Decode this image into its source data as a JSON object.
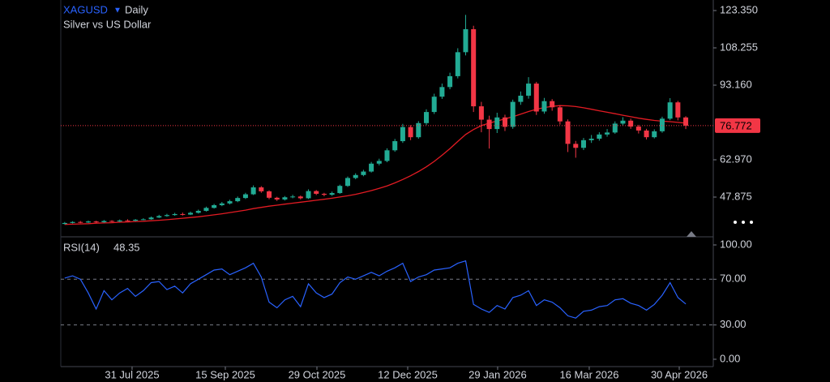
{
  "chart_data": [
    {
      "type": "candlestick",
      "symbol": "XAGUSD",
      "interval": "Daily",
      "title": "Silver vs US Dollar",
      "open": [
        37.0,
        37.4,
        37.8,
        37.6,
        38.0,
        37.7,
        38.2,
        38.0,
        38.4,
        38.3,
        38.7,
        38.9,
        39.6,
        40.2,
        40.6,
        41.0,
        40.8,
        41.5,
        42.3,
        43.5,
        44.6,
        45.3,
        46.2,
        47.5,
        49.0,
        51.8,
        50.2,
        47.6,
        46.9,
        47.8,
        48.1,
        47.4,
        50.3,
        49.2,
        48.8,
        49.5,
        52.4,
        55.6,
        56.8,
        58.2,
        61.4,
        62.5,
        66.8,
        70.5,
        76.2,
        72.1,
        77.8,
        82.3,
        88.5,
        92.4,
        96.8,
        106.5,
        115.8,
        84.6,
        79.2,
        75.4,
        80.1,
        76.3,
        86.4,
        88.9,
        93.8,
        82.5,
        86.7,
        84.2,
        78.5,
        69.4,
        67.8,
        70.9,
        71.5,
        73.2,
        74.0,
        77.6,
        78.8,
        76.4,
        74.8,
        72.1,
        74.5,
        79.6,
        86.2,
        80.1
      ],
      "high": [
        37.8,
        38.1,
        38.2,
        38.4,
        38.3,
        38.6,
        38.5,
        38.8,
        38.9,
        39.0,
        39.3,
        40.0,
        40.7,
        41.1,
        41.5,
        41.6,
        42.0,
        42.8,
        44.0,
        45.1,
        45.9,
        46.8,
        48.1,
        49.6,
        52.6,
        52.3,
        50.6,
        48.0,
        48.3,
        48.8,
        48.5,
        51.0,
        50.7,
        49.6,
        50.1,
        52.9,
        56.2,
        57.5,
        58.9,
        62.1,
        63.4,
        67.6,
        71.4,
        77.5,
        77.0,
        78.6,
        83.4,
        89.7,
        93.8,
        98.2,
        108.1,
        121.6,
        117.2,
        86.4,
        80.8,
        82.0,
        81.2,
        87.3,
        90.6,
        96.4,
        94.5,
        88.0,
        87.5,
        85.0,
        79.3,
        70.6,
        71.8,
        73.0,
        74.1,
        75.4,
        78.5,
        80.2,
        79.6,
        77.1,
        75.5,
        75.3,
        80.4,
        87.9,
        86.8,
        80.6
      ],
      "low": [
        36.8,
        37.2,
        37.3,
        37.4,
        37.4,
        37.5,
        37.7,
        37.8,
        38.0,
        38.1,
        38.5,
        38.7,
        39.4,
        39.9,
        40.3,
        40.4,
        40.6,
        41.2,
        42.0,
        43.2,
        44.2,
        44.9,
        45.8,
        47.1,
        48.7,
        49.6,
        47.0,
        46.3,
        46.5,
        47.4,
        46.9,
        47.1,
        48.7,
        48.2,
        48.4,
        49.2,
        52.0,
        55.1,
        56.3,
        57.8,
        60.7,
        62.0,
        66.2,
        69.8,
        70.9,
        71.5,
        77.0,
        81.5,
        87.6,
        91.5,
        95.9,
        105.2,
        82.3,
        74.1,
        67.5,
        73.8,
        74.6,
        75.5,
        85.2,
        87.7,
        81.1,
        81.6,
        82.8,
        77.2,
        66.1,
        63.8,
        66.9,
        69.8,
        70.7,
        72.3,
        73.5,
        76.9,
        75.5,
        73.6,
        71.2,
        71.6,
        73.9,
        79.0,
        78.9,
        75.4
      ],
      "close": [
        37.4,
        37.8,
        37.6,
        38.0,
        37.7,
        38.2,
        38.0,
        38.4,
        38.3,
        38.7,
        38.9,
        39.6,
        40.2,
        40.6,
        41.0,
        40.8,
        41.5,
        42.3,
        43.5,
        44.6,
        45.3,
        46.2,
        47.5,
        49.0,
        51.8,
        50.2,
        47.6,
        46.9,
        47.8,
        48.1,
        47.4,
        50.3,
        49.2,
        48.8,
        49.5,
        52.4,
        55.6,
        56.8,
        58.2,
        61.4,
        62.5,
        66.8,
        70.5,
        76.2,
        72.1,
        77.8,
        82.3,
        88.5,
        92.4,
        96.8,
        106.5,
        115.8,
        84.6,
        79.2,
        75.4,
        80.1,
        76.3,
        86.4,
        88.9,
        93.8,
        82.5,
        86.7,
        84.2,
        78.5,
        69.4,
        67.8,
        70.9,
        71.5,
        73.2,
        74.0,
        77.6,
        78.8,
        76.4,
        74.8,
        72.1,
        74.5,
        79.6,
        86.2,
        80.1,
        76.772
      ],
      "up_color": "#22ab94",
      "down_color": "#f23645",
      "overlay": {
        "color": "#e31b23",
        "values": [
          36.8,
          36.9,
          37.0,
          37.1,
          37.3,
          37.4,
          37.5,
          37.7,
          37.8,
          38.0,
          38.1,
          38.3,
          38.5,
          38.7,
          39.0,
          39.3,
          39.6,
          39.9,
          40.3,
          40.7,
          41.1,
          41.6,
          42.1,
          42.6,
          43.2,
          43.7,
          44.2,
          44.6,
          45.0,
          45.4,
          45.8,
          46.2,
          46.6,
          47.0,
          47.4,
          47.9,
          48.4,
          49.0,
          49.7,
          50.5,
          51.4,
          52.4,
          53.6,
          55.0,
          56.5,
          58.2,
          60.1,
          62.3,
          64.8,
          67.5,
          70.4,
          73.2,
          75.2,
          76.8,
          77.8,
          78.7,
          79.5,
          80.4,
          81.4,
          82.5,
          83.4,
          84.1,
          84.6,
          84.9,
          84.8,
          84.5,
          84.0,
          83.4,
          82.8,
          82.2,
          81.6,
          81.0,
          80.4,
          79.8,
          79.3,
          78.9,
          78.6,
          78.4,
          78.1,
          77.8
        ]
      },
      "xlim": [
        -0.5,
        82.5
      ],
      "xticks": [
        {
          "value": 8.57,
          "label": "31 Jul 2025"
        },
        {
          "value": 20.43,
          "label": "15 Sep 2025"
        },
        {
          "value": 32.08,
          "label": "29 Oct 2025"
        },
        {
          "value": 43.63,
          "label": "12 Dec 2025"
        },
        {
          "value": 55.07,
          "label": "29 Jan 2026"
        },
        {
          "value": 66.72,
          "label": "16 Mar 2026"
        },
        {
          "value": 78.17,
          "label": "30 Apr 2026"
        }
      ],
      "ylim": [
        31.79,
        127.62
      ],
      "yticks": [
        {
          "value": 123.35,
          "label": "123.350"
        },
        {
          "value": 108.255,
          "label": "108.255"
        },
        {
          "value": 93.16,
          "label": "93.160"
        },
        {
          "value": 62.97,
          "label": "62.970"
        },
        {
          "value": 47.875,
          "label": "47.875"
        }
      ]
    },
    {
      "type": "line",
      "title": "RSI(14)",
      "color": "#2962ff",
      "values": [
        71,
        73,
        70,
        58,
        44,
        60,
        52,
        58,
        62,
        55,
        60,
        67,
        68,
        61,
        64,
        58,
        66,
        70,
        74,
        78,
        79,
        74,
        77,
        80,
        84,
        72,
        50,
        45,
        52,
        55,
        46,
        66,
        58,
        54,
        57,
        67,
        72,
        70,
        73,
        76,
        73,
        77,
        80,
        84,
        68,
        72,
        74,
        78,
        79,
        80,
        84,
        86,
        48,
        44,
        41,
        47,
        44,
        54,
        56,
        60,
        47,
        52,
        50,
        45,
        38,
        36,
        42,
        43,
        46,
        47,
        52,
        53,
        49,
        47,
        43,
        48,
        56,
        67,
        54,
        48.35
      ],
      "xlim": [
        -0.5,
        82.5
      ],
      "ylim": [
        -6.4,
        107.1
      ],
      "yticks": [
        {
          "value": 100,
          "label": "100.00"
        },
        {
          "value": 70,
          "label": "70.00"
        },
        {
          "value": 30,
          "label": "30.00"
        },
        {
          "value": 0,
          "label": "0.00"
        }
      ],
      "bands": [
        70,
        30
      ]
    }
  ]
}
